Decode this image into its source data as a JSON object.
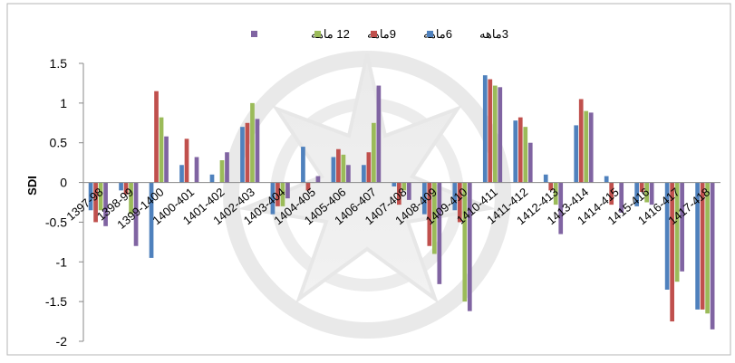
{
  "chart_data": {
    "type": "bar",
    "ylabel": "SDI",
    "ylim": [
      -2,
      1.5
    ],
    "yticks": [
      "1.5",
      "1",
      "0.5",
      "0",
      "-0.5",
      "-1",
      "-1.5",
      "-2"
    ],
    "ytick_values": [
      1.5,
      1,
      0.5,
      0,
      -0.5,
      -1,
      -1.5,
      -2
    ],
    "legend_position": "top",
    "grid": false,
    "categories": [
      "1397-98",
      "1398-99",
      "1399-1400",
      "1400-401",
      "1401-402",
      "1402-403",
      "1403-404",
      "1404-405",
      "1405-406",
      "1406-407",
      "1407-408",
      "1408-409",
      "1409-410",
      "1410-411",
      "1411-412",
      "1412-413",
      "1413-414",
      "1414-415",
      "1415-416",
      "1416-417",
      "1417-418"
    ],
    "series": [
      {
        "name": "3ماهه",
        "color": "#4f81bd",
        "values": [
          -0.35,
          -0.1,
          -0.95,
          0.22,
          0.1,
          0.7,
          -0.4,
          0.45,
          0.32,
          0.22,
          -0.05,
          -0.4,
          -0.35,
          1.35,
          0.78,
          0.1,
          0.72,
          0.08,
          -0.3,
          -1.35,
          -1.6
        ]
      },
      {
        "name": "6ماهه",
        "color": "#c0504d",
        "values": [
          -0.5,
          -0.15,
          1.15,
          0.55,
          0.0,
          0.75,
          -0.3,
          -0.1,
          0.42,
          0.38,
          -0.28,
          -0.8,
          -0.5,
          1.3,
          0.82,
          -0.1,
          1.05,
          -0.28,
          -0.12,
          -1.75,
          -1.6
        ]
      },
      {
        "name": "9ماهه",
        "color": "#9bbb59",
        "values": [
          -0.35,
          -0.4,
          0.82,
          0.0,
          0.28,
          1.0,
          -0.3,
          0.0,
          0.35,
          0.75,
          -0.1,
          -0.9,
          -1.5,
          1.22,
          0.7,
          -0.28,
          0.9,
          0.0,
          -0.25,
          -1.25,
          -1.65
        ]
      },
      {
        "name": "12 ماهه",
        "color": "#8064a2",
        "values": [
          -0.55,
          -0.8,
          0.58,
          0.32,
          0.38,
          0.8,
          -0.2,
          0.08,
          0.22,
          1.22,
          -0.22,
          -1.28,
          -1.62,
          1.2,
          0.5,
          -0.65,
          0.88,
          -0.38,
          -0.28,
          -1.12,
          -1.85
        ]
      }
    ]
  }
}
